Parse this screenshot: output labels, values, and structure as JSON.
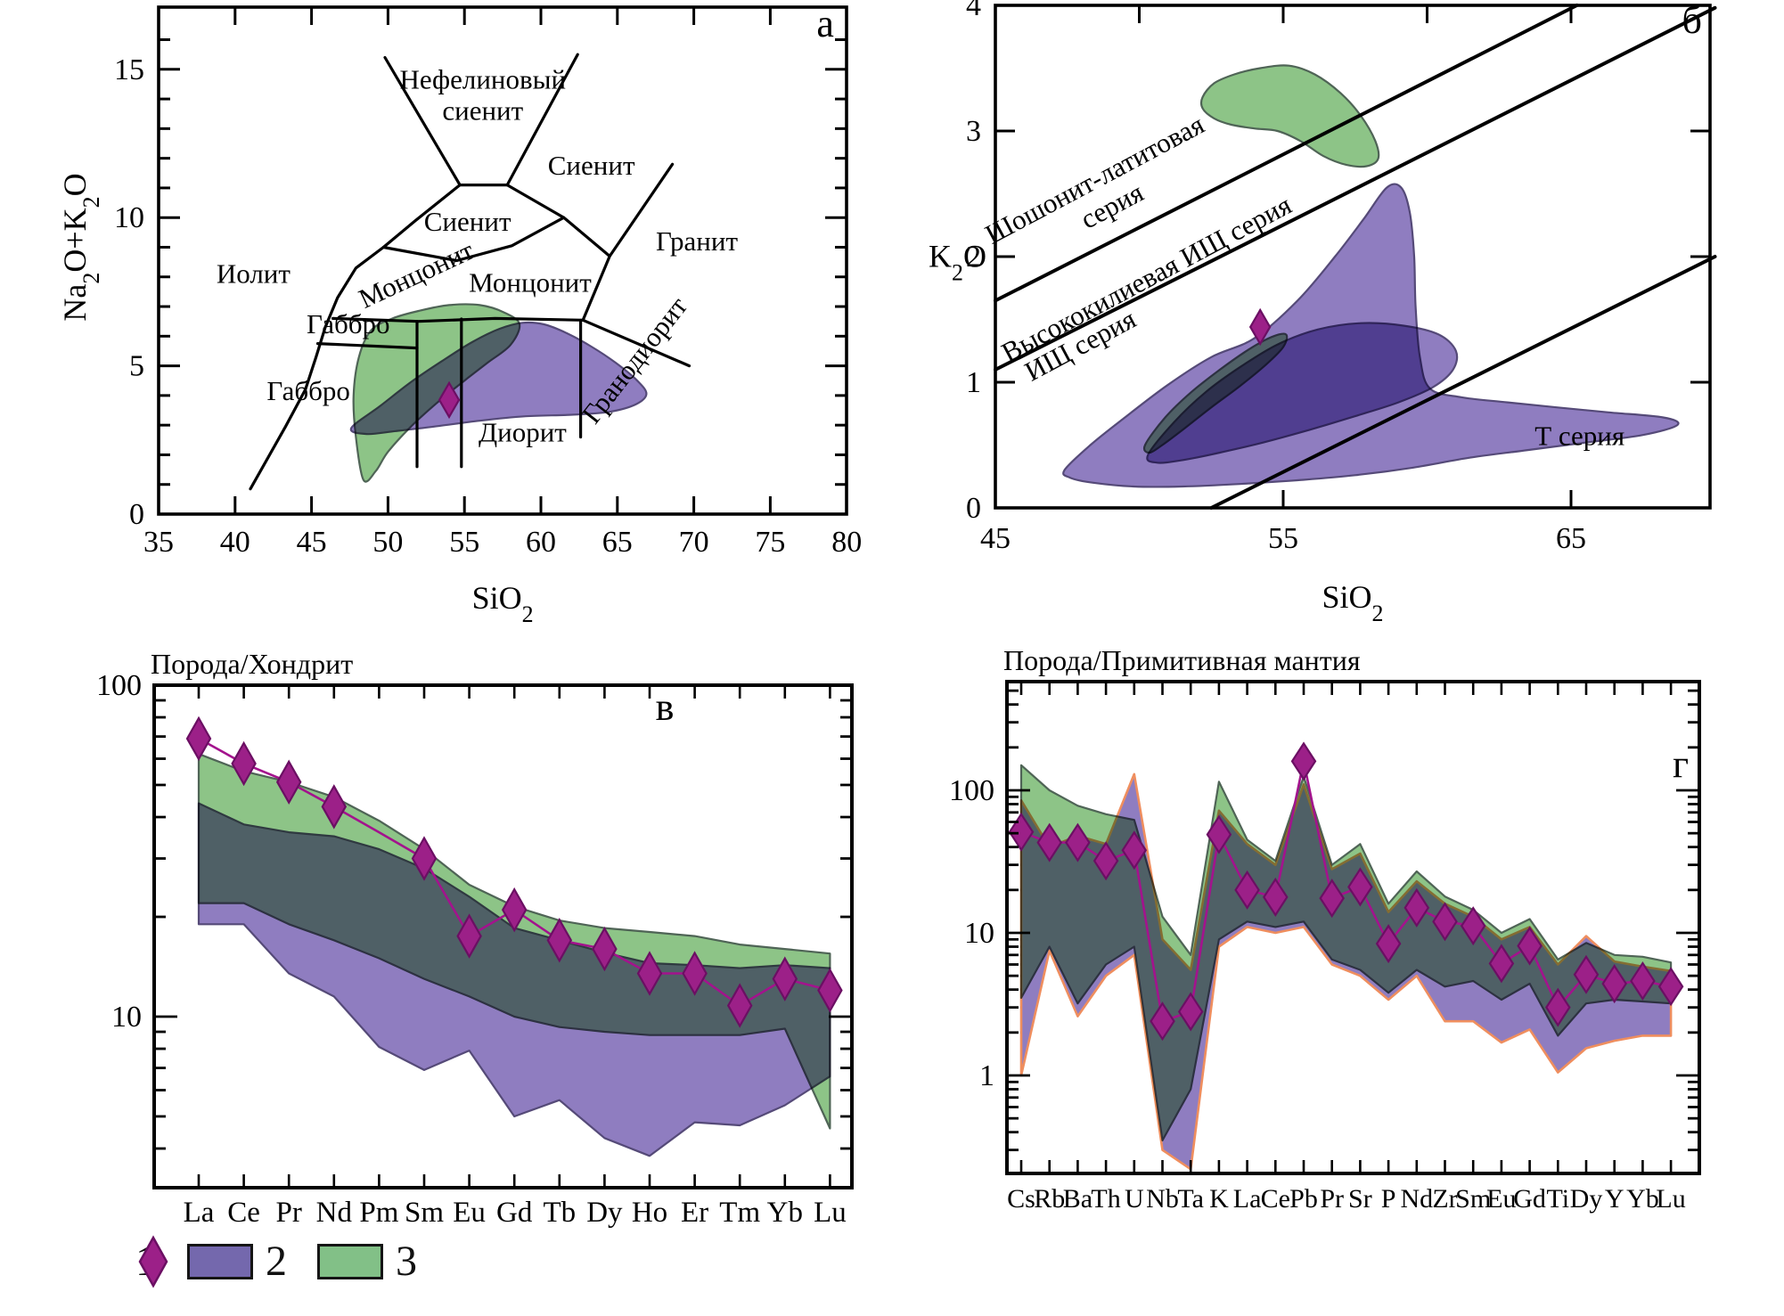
{
  "palette": {
    "green_fill": "#8dc487",
    "green_stroke": "#4f6456",
    "purple_fill": "#8f7dc0",
    "purple_stroke": "#554a78",
    "salmon_stroke": "#ef8e5e",
    "magenta_fill": "#9c2088",
    "magenta_stroke": "#6b0f63",
    "magenta_line": "#a3138d",
    "legend_purple": "#7468ad",
    "legend_green": "#82c087",
    "axis": "#000000"
  },
  "legend": {
    "items": [
      {
        "marker": "diamond",
        "label": "1"
      },
      {
        "marker": "rect-purple",
        "label": "2"
      },
      {
        "marker": "rect-green",
        "label": "3"
      }
    ]
  },
  "chart_data": [
    {
      "id": "a",
      "panel_letter": "а",
      "type": "scatter-fields",
      "xlabel": [
        {
          "t": "SiO"
        },
        {
          "t": "2",
          "sub": true
        }
      ],
      "ylabel": [
        {
          "t": "Na"
        },
        {
          "t": "2",
          "sub": true
        },
        {
          "t": "O+K"
        },
        {
          "t": "2",
          "sub": true
        },
        {
          "t": "O"
        }
      ],
      "xlim": [
        35,
        80
      ],
      "ylim": [
        0,
        17.1
      ],
      "xtick_labels": [
        35,
        40,
        45,
        50,
        55,
        60,
        65,
        70,
        75,
        80
      ],
      "ytick_labels": [
        0,
        5,
        10,
        15
      ],
      "boundaries": [
        [
          [
            49.8,
            15.4
          ],
          [
            54.7,
            11.1
          ]
        ],
        [
          [
            54.7,
            11.1
          ],
          [
            57.8,
            11.1
          ]
        ],
        [
          [
            57.8,
            11.1
          ],
          [
            62.4,
            15.5
          ]
        ],
        [
          [
            41.0,
            0.85
          ],
          [
            43.3,
            2.95
          ],
          [
            44.6,
            4.2
          ],
          [
            45.3,
            5.3
          ],
          [
            45.9,
            6.3
          ],
          [
            46.7,
            7.3
          ],
          [
            47.9,
            8.3
          ],
          [
            49.7,
            9.0
          ],
          [
            51.8,
            9.9
          ],
          [
            54.7,
            11.1
          ]
        ],
        [
          [
            49.7,
            9.0
          ],
          [
            54.5,
            8.55
          ],
          [
            58.1,
            9.05
          ],
          [
            61.5,
            10.0
          ]
        ],
        [
          [
            57.8,
            11.1
          ],
          [
            61.5,
            10.0
          ],
          [
            64.5,
            8.7
          ]
        ],
        [
          [
            68.6,
            11.8
          ],
          [
            64.5,
            8.7
          ],
          [
            62.75,
            6.54
          ]
        ],
        [
          [
            62.75,
            6.54
          ],
          [
            69.7,
            5.0
          ]
        ],
        [
          [
            46.4,
            6.6
          ],
          [
            52.0,
            6.5
          ],
          [
            57.0,
            6.6
          ],
          [
            62.75,
            6.54
          ]
        ],
        [
          [
            45.4,
            5.75
          ],
          [
            51.9,
            5.6
          ]
        ],
        [
          [
            51.9,
            6.5
          ],
          [
            51.9,
            1.6
          ]
        ],
        [
          [
            54.8,
            6.58
          ],
          [
            54.8,
            1.6
          ]
        ],
        [
          [
            62.6,
            6.54
          ],
          [
            62.6,
            2.6
          ]
        ]
      ],
      "labels": [
        {
          "t": "Нефелиновый",
          "x": 56.2,
          "y": 14.35
        },
        {
          "t": "сиенит",
          "x": 56.2,
          "y": 13.3
        },
        {
          "t": "Сиенит",
          "x": 63.3,
          "y": 11.45
        },
        {
          "t": "Сиенит",
          "x": 55.2,
          "y": 9.55
        },
        {
          "t": "Гранит",
          "x": 70.2,
          "y": 8.9
        },
        {
          "t": "Монцонит",
          "x": 52.1,
          "y": 7.8,
          "rot": -25
        },
        {
          "t": "Монцонит",
          "x": 59.3,
          "y": 7.5
        },
        {
          "t": "Иолит",
          "x": 41.2,
          "y": 7.8
        },
        {
          "t": "Габбро",
          "x": 47.4,
          "y": 6.1
        },
        {
          "t": "Габбро",
          "x": 44.8,
          "y": 3.85
        },
        {
          "t": "Диорит",
          "x": 58.8,
          "y": 2.45
        },
        {
          "t": "Гранодиорит",
          "x": 66.6,
          "y": 5.0,
          "rot": -52
        }
      ],
      "fields": {
        "green": [
          [
            48.4,
            1.15
          ],
          [
            47.9,
            2.6
          ],
          [
            47.75,
            4.0
          ],
          [
            48.1,
            5.3
          ],
          [
            48.9,
            6.2
          ],
          [
            50.3,
            6.6
          ],
          [
            52.0,
            6.85
          ],
          [
            54.0,
            7.05
          ],
          [
            56.0,
            7.05
          ],
          [
            57.6,
            6.8
          ],
          [
            58.6,
            6.4
          ],
          [
            58.0,
            5.7
          ],
          [
            56.5,
            5.1
          ],
          [
            55.0,
            4.5
          ],
          [
            53.2,
            3.75
          ],
          [
            51.5,
            2.95
          ],
          [
            50.0,
            2.1
          ],
          [
            49.2,
            1.45
          ]
        ],
        "purple": [
          [
            47.6,
            2.9
          ],
          [
            49.5,
            3.65
          ],
          [
            51.5,
            4.45
          ],
          [
            53.5,
            5.15
          ],
          [
            55.5,
            5.8
          ],
          [
            57.3,
            6.25
          ],
          [
            58.8,
            6.45
          ],
          [
            60.2,
            6.4
          ],
          [
            61.7,
            6.1
          ],
          [
            63.3,
            5.65
          ],
          [
            64.9,
            5.1
          ],
          [
            66.3,
            4.5
          ],
          [
            66.9,
            4.05
          ],
          [
            66.2,
            3.7
          ],
          [
            64.5,
            3.45
          ],
          [
            62.0,
            3.35
          ],
          [
            59.0,
            3.3
          ],
          [
            56.0,
            3.15
          ],
          [
            53.0,
            2.95
          ],
          [
            50.5,
            2.8
          ],
          [
            48.6,
            2.7
          ]
        ]
      },
      "sample_point": {
        "x": 54.0,
        "y": 3.85
      }
    },
    {
      "id": "b",
      "panel_letter": "б",
      "type": "scatter-fields",
      "xlabel": [
        {
          "t": "SiO"
        },
        {
          "t": "2",
          "sub": true
        }
      ],
      "ylabel": [
        {
          "t": "K"
        },
        {
          "t": "2",
          "sub": true
        },
        {
          "t": "O"
        }
      ],
      "xlim": [
        45,
        70
      ],
      "ylim": [
        0,
        4
      ],
      "xtick_labels": [
        45,
        55,
        65
      ],
      "ytick_labels": [
        0,
        1,
        2,
        3,
        4
      ],
      "series_lines": [
        [
          [
            45,
            1.65
          ],
          [
            65.2,
            4.0
          ]
        ],
        [
          [
            45,
            1.1
          ],
          [
            70,
            3.98
          ]
        ],
        [
          [
            52.5,
            0
          ],
          [
            70,
            2.0
          ]
        ]
      ],
      "labels": [
        {
          "t": "Шошонит-латитовая",
          "x": 48.6,
          "y": 2.55,
          "rot": -28
        },
        {
          "t": "серия",
          "x": 49.2,
          "y": 2.34,
          "rot": -28
        },
        {
          "t": "Высококилиевая ИЩ серия",
          "x": 50.4,
          "y": 1.76,
          "rot": -28
        },
        {
          "t": "ИЩ серия",
          "x": 48.1,
          "y": 1.23,
          "rot": -28
        },
        {
          "t": "Т серия",
          "x": 65.3,
          "y": 0.5,
          "rot": 0
        }
      ],
      "fields": {
        "purple_big": [
          [
            47.4,
            0.3
          ],
          [
            48.3,
            0.5
          ],
          [
            49.5,
            0.72
          ],
          [
            51.0,
            0.98
          ],
          [
            52.5,
            1.2
          ],
          [
            54.0,
            1.35
          ],
          [
            55.5,
            1.65
          ],
          [
            56.8,
            2.0
          ],
          [
            57.8,
            2.3
          ],
          [
            58.6,
            2.55
          ],
          [
            59.1,
            2.55
          ],
          [
            59.4,
            2.35
          ],
          [
            59.55,
            2.0
          ],
          [
            59.6,
            1.6
          ],
          [
            59.75,
            1.2
          ],
          [
            60.1,
            0.95
          ],
          [
            61.2,
            0.88
          ],
          [
            62.8,
            0.84
          ],
          [
            64.5,
            0.8
          ],
          [
            66.3,
            0.76
          ],
          [
            68.2,
            0.72
          ],
          [
            68.7,
            0.66
          ],
          [
            67.5,
            0.58
          ],
          [
            65.5,
            0.52
          ],
          [
            63.5,
            0.46
          ],
          [
            61.5,
            0.4
          ],
          [
            59.5,
            0.32
          ],
          [
            57.5,
            0.26
          ],
          [
            55.5,
            0.22
          ],
          [
            53.5,
            0.19
          ],
          [
            51.5,
            0.17
          ],
          [
            49.8,
            0.17
          ],
          [
            48.4,
            0.2
          ],
          [
            47.6,
            0.24
          ]
        ],
        "purple_small": [
          [
            50.3,
            0.42
          ],
          [
            51.2,
            0.68
          ],
          [
            52.3,
            0.92
          ],
          [
            53.5,
            1.12
          ],
          [
            54.8,
            1.3
          ],
          [
            56.2,
            1.42
          ],
          [
            57.7,
            1.47
          ],
          [
            59.2,
            1.45
          ],
          [
            60.4,
            1.38
          ],
          [
            61.0,
            1.25
          ],
          [
            60.9,
            1.1
          ],
          [
            60.2,
            0.96
          ],
          [
            59.0,
            0.84
          ],
          [
            57.5,
            0.73
          ],
          [
            55.9,
            0.62
          ],
          [
            54.3,
            0.52
          ],
          [
            52.8,
            0.44
          ],
          [
            51.5,
            0.38
          ],
          [
            50.6,
            0.36
          ]
        ],
        "green_small": [
          [
            50.2,
            0.5
          ],
          [
            50.9,
            0.72
          ],
          [
            51.8,
            0.92
          ],
          [
            52.8,
            1.1
          ],
          [
            53.8,
            1.26
          ],
          [
            54.6,
            1.36
          ],
          [
            55.1,
            1.38
          ],
          [
            55.0,
            1.28
          ],
          [
            54.4,
            1.14
          ],
          [
            53.5,
            0.97
          ],
          [
            52.5,
            0.8
          ],
          [
            51.5,
            0.62
          ],
          [
            50.8,
            0.5
          ],
          [
            50.35,
            0.44
          ]
        ],
        "green_top": [
          [
            52.2,
            3.27
          ],
          [
            52.6,
            3.38
          ],
          [
            53.3,
            3.45
          ],
          [
            54.2,
            3.5
          ],
          [
            55.2,
            3.52
          ],
          [
            56.1,
            3.45
          ],
          [
            57.0,
            3.3
          ],
          [
            57.7,
            3.12
          ],
          [
            58.2,
            2.92
          ],
          [
            58.3,
            2.78
          ],
          [
            57.9,
            2.72
          ],
          [
            57.2,
            2.73
          ],
          [
            56.4,
            2.8
          ],
          [
            55.6,
            2.92
          ],
          [
            54.8,
            3.0
          ],
          [
            54.0,
            3.02
          ],
          [
            53.2,
            3.05
          ],
          [
            52.6,
            3.1
          ],
          [
            52.2,
            3.18
          ]
        ]
      },
      "sample_point": {
        "x": 54.2,
        "y": 1.44
      }
    },
    {
      "id": "v",
      "panel_letter": "в",
      "type": "spider",
      "title": "Порода/Хондрит",
      "elements": [
        "La",
        "Ce",
        "Pr",
        "Nd",
        "Pm",
        "Sm",
        "Eu",
        "Gd",
        "Tb",
        "Dy",
        "Ho",
        "Er",
        "Tm",
        "Yb",
        "Lu"
      ],
      "ylim": [
        3,
        100
      ],
      "ytick_labels": [
        10,
        100
      ],
      "series": {
        "values": [
          69,
          58,
          51,
          43,
          36,
          30,
          17.5,
          21,
          17,
          16,
          13.5,
          13.5,
          10.8,
          13,
          12
        ],
        "marker_skip": [
          4
        ]
      },
      "bands": {
        "green": {
          "upper": [
            62,
            55,
            51,
            46,
            39,
            32,
            25,
            21.5,
            19.5,
            18.5,
            18,
            17.5,
            16.5,
            16,
            15.5
          ],
          "lower": [
            22,
            22,
            19,
            17,
            15,
            13,
            11.5,
            10,
            9.3,
            9,
            8.8,
            8.8,
            8.8,
            9.2,
            4.6
          ]
        },
        "purple": {
          "upper": [
            44,
            38,
            36,
            35,
            32,
            28,
            23,
            18.5,
            17,
            15.6,
            14.5,
            14.3,
            14,
            14.3,
            14
          ],
          "lower": [
            19,
            19,
            13.5,
            11.5,
            8.1,
            6.9,
            7.9,
            5,
            5.6,
            4.3,
            3.8,
            4.8,
            4.7,
            5.4,
            6.6
          ]
        }
      }
    },
    {
      "id": "g",
      "panel_letter": "г",
      "type": "spider",
      "title": "Порода/Примитивная мантия",
      "elements": [
        "Cs",
        "Rb",
        "Ba",
        "Th",
        "U",
        "Nb",
        "Ta",
        "K",
        "La",
        "Ce",
        "Pb",
        "Pr",
        "Sr",
        "P",
        "Nd",
        "Zr",
        "Sm",
        "Eu",
        "Gd",
        "Ti",
        "Dy",
        "Y",
        "Yb",
        "Lu"
      ],
      "ylim": [
        0.2,
        580
      ],
      "ytick_labels": [
        1,
        10,
        100
      ],
      "series": {
        "values": [
          51,
          43,
          43,
          32,
          38,
          2.4,
          2.8,
          49,
          20,
          17.8,
          160,
          17.5,
          21,
          8.4,
          15,
          12,
          11.2,
          6.1,
          8.1,
          3.0,
          5.1,
          4.4,
          4.6,
          4.2
        ],
        "marker_skip": []
      },
      "bands": {
        "green": {
          "upper": [
            150,
            100,
            78,
            68,
            62,
            13,
            7,
            115,
            45,
            32,
            125,
            30,
            42,
            16,
            27,
            18,
            14.5,
            10,
            12.5,
            6.5,
            8.5,
            7,
            6.8,
            6.2
          ],
          "lower": [
            3.5,
            8,
            3.2,
            6,
            8,
            0.35,
            0.8,
            9,
            12,
            11,
            12,
            6.5,
            5.5,
            3.8,
            5.5,
            4.2,
            4.6,
            3.4,
            4.4,
            1.9,
            3.2,
            3.4,
            3.3,
            3.2
          ]
        },
        "purple": {
          "upper": [
            85,
            40,
            48,
            42,
            130,
            9,
            5.5,
            72,
            42,
            30,
            110,
            28,
            36,
            14,
            23,
            16,
            13,
            9,
            11,
            6,
            9.5,
            6.3,
            5.8,
            5.4
          ],
          "lower": [
            1.0,
            7.5,
            2.6,
            5,
            7,
            0.3,
            0.22,
            8,
            11,
            10,
            11,
            6,
            5,
            3.4,
            5,
            2.4,
            2.4,
            1.7,
            2.1,
            1.05,
            1.55,
            1.75,
            1.9,
            1.9
          ],
          "stroke": "salmon"
        }
      }
    }
  ]
}
